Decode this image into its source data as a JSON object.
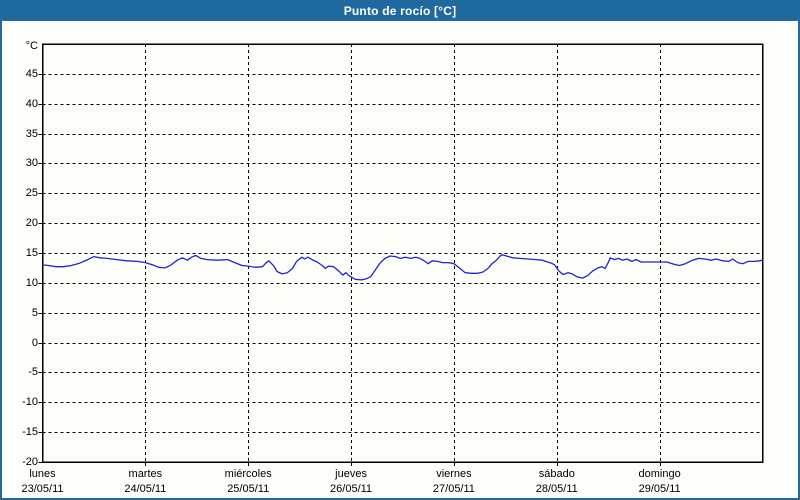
{
  "header": {
    "title": "Punto de rocío [°C]"
  },
  "colors": {
    "header_bg": "#1f699e",
    "frame_border": "#1f699e",
    "plot_bg": "#fdfdfa",
    "grid": "#000000",
    "axis_text": "#000000",
    "title_text": "#ffffff",
    "line": "#2323cc"
  },
  "chart_data": {
    "type": "line",
    "title": "Punto de rocío [°C]",
    "ylabel": "°C",
    "ylim": [
      -20,
      50
    ],
    "yticks": [
      45,
      40,
      35,
      30,
      25,
      20,
      15,
      10,
      5,
      0,
      -5,
      -10,
      -15,
      -20
    ],
    "grid": "dashed",
    "legend_position": "none",
    "x_days": [
      {
        "name": "lunes",
        "date": "23/05/11"
      },
      {
        "name": "martes",
        "date": "24/05/11"
      },
      {
        "name": "miércoles",
        "date": "25/05/11"
      },
      {
        "name": "jueves",
        "date": "26/05/11"
      },
      {
        "name": "viernes",
        "date": "27/05/11"
      },
      {
        "name": "sábado",
        "date": "28/05/11"
      },
      {
        "name": "domingo",
        "date": "29/05/11"
      }
    ],
    "series": [
      {
        "name": "Punto de rocío",
        "color": "#2323cc",
        "x_unit": "days_from_start",
        "points": [
          [
            0.0,
            13.0
          ],
          [
            0.06,
            12.9
          ],
          [
            0.13,
            12.7
          ],
          [
            0.2,
            12.7
          ],
          [
            0.28,
            12.9
          ],
          [
            0.36,
            13.3
          ],
          [
            0.44,
            13.9
          ],
          [
            0.5,
            14.4
          ],
          [
            0.56,
            14.2
          ],
          [
            0.63,
            14.1
          ],
          [
            0.72,
            13.9
          ],
          [
            0.82,
            13.7
          ],
          [
            0.92,
            13.6
          ],
          [
            1.0,
            13.4
          ],
          [
            1.07,
            13.0
          ],
          [
            1.13,
            12.6
          ],
          [
            1.19,
            12.5
          ],
          [
            1.25,
            13.0
          ],
          [
            1.31,
            13.8
          ],
          [
            1.36,
            14.2
          ],
          [
            1.41,
            13.8
          ],
          [
            1.45,
            14.3
          ],
          [
            1.49,
            14.6
          ],
          [
            1.54,
            14.1
          ],
          [
            1.6,
            13.9
          ],
          [
            1.7,
            13.8
          ],
          [
            1.8,
            13.9
          ],
          [
            1.87,
            13.4
          ],
          [
            1.94,
            12.9
          ],
          [
            2.0,
            12.8
          ],
          [
            2.07,
            12.6
          ],
          [
            2.14,
            12.7
          ],
          [
            2.17,
            13.3
          ],
          [
            2.2,
            13.7
          ],
          [
            2.25,
            12.8
          ],
          [
            2.28,
            11.9
          ],
          [
            2.33,
            11.5
          ],
          [
            2.38,
            11.7
          ],
          [
            2.43,
            12.4
          ],
          [
            2.47,
            13.6
          ],
          [
            2.52,
            14.3
          ],
          [
            2.55,
            14.0
          ],
          [
            2.58,
            14.3
          ],
          [
            2.62,
            13.9
          ],
          [
            2.67,
            13.5
          ],
          [
            2.72,
            12.9
          ],
          [
            2.75,
            12.4
          ],
          [
            2.78,
            12.8
          ],
          [
            2.83,
            12.7
          ],
          [
            2.88,
            12.0
          ],
          [
            2.92,
            11.3
          ],
          [
            2.95,
            11.7
          ],
          [
            2.98,
            11.2
          ],
          [
            3.0,
            11.0
          ],
          [
            3.04,
            10.6
          ],
          [
            3.1,
            10.5
          ],
          [
            3.15,
            10.7
          ],
          [
            3.19,
            11.0
          ],
          [
            3.23,
            12.0
          ],
          [
            3.28,
            13.3
          ],
          [
            3.33,
            14.1
          ],
          [
            3.38,
            14.5
          ],
          [
            3.43,
            14.4
          ],
          [
            3.48,
            14.1
          ],
          [
            3.53,
            14.3
          ],
          [
            3.58,
            14.1
          ],
          [
            3.63,
            14.3
          ],
          [
            3.67,
            14.1
          ],
          [
            3.72,
            13.6
          ],
          [
            3.75,
            13.2
          ],
          [
            3.79,
            13.7
          ],
          [
            3.84,
            13.6
          ],
          [
            3.89,
            13.4
          ],
          [
            3.94,
            13.4
          ],
          [
            3.98,
            13.3
          ],
          [
            4.0,
            13.2
          ],
          [
            4.06,
            12.4
          ],
          [
            4.11,
            11.7
          ],
          [
            4.17,
            11.6
          ],
          [
            4.23,
            11.6
          ],
          [
            4.28,
            11.8
          ],
          [
            4.33,
            12.4
          ],
          [
            4.37,
            13.2
          ],
          [
            4.42,
            13.9
          ],
          [
            4.45,
            14.5
          ],
          [
            4.47,
            14.7
          ],
          [
            4.51,
            14.5
          ],
          [
            4.57,
            14.2
          ],
          [
            4.64,
            14.1
          ],
          [
            4.72,
            14.0
          ],
          [
            4.8,
            13.9
          ],
          [
            4.86,
            13.8
          ],
          [
            4.91,
            13.5
          ],
          [
            4.95,
            13.3
          ],
          [
            4.98,
            13.0
          ],
          [
            5.02,
            12.0
          ],
          [
            5.06,
            11.4
          ],
          [
            5.11,
            11.7
          ],
          [
            5.15,
            11.5
          ],
          [
            5.2,
            11.0
          ],
          [
            5.25,
            10.8
          ],
          [
            5.3,
            11.2
          ],
          [
            5.35,
            12.0
          ],
          [
            5.4,
            12.5
          ],
          [
            5.44,
            12.7
          ],
          [
            5.47,
            12.4
          ],
          [
            5.5,
            13.4
          ],
          [
            5.52,
            14.2
          ],
          [
            5.56,
            13.9
          ],
          [
            5.6,
            14.1
          ],
          [
            5.64,
            13.8
          ],
          [
            5.68,
            14.0
          ],
          [
            5.73,
            13.6
          ],
          [
            5.77,
            13.9
          ],
          [
            5.82,
            13.5
          ],
          [
            5.9,
            13.5
          ],
          [
            5.97,
            13.5
          ],
          [
            6.0,
            13.5
          ],
          [
            6.07,
            13.5
          ],
          [
            6.14,
            13.1
          ],
          [
            6.19,
            12.9
          ],
          [
            6.25,
            13.2
          ],
          [
            6.32,
            13.8
          ],
          [
            6.38,
            14.1
          ],
          [
            6.44,
            14.0
          ],
          [
            6.5,
            13.8
          ],
          [
            6.55,
            14.0
          ],
          [
            6.61,
            13.7
          ],
          [
            6.67,
            13.6
          ],
          [
            6.71,
            14.0
          ],
          [
            6.76,
            13.4
          ],
          [
            6.81,
            13.2
          ],
          [
            6.86,
            13.6
          ],
          [
            6.92,
            13.6
          ],
          [
            6.97,
            13.7
          ],
          [
            7.0,
            13.8
          ]
        ]
      }
    ]
  }
}
